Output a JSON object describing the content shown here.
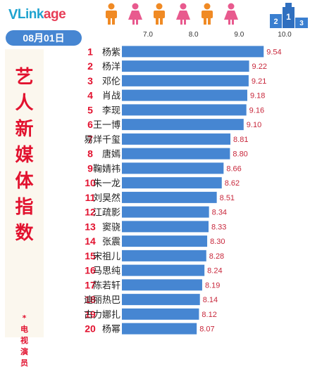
{
  "header": {
    "logo_v": "V",
    "logo_link": "Link",
    "logo_age": "age",
    "date": "08月01日",
    "podium_labels": [
      "2",
      "1",
      "3"
    ]
  },
  "side_title": {
    "chars": [
      "艺",
      "人",
      "新",
      "媒",
      "体",
      "指",
      "数"
    ],
    "sub_chars": [
      "*",
      "电",
      "视",
      "演",
      "员"
    ]
  },
  "colors": {
    "accent_red": "#e2122f",
    "bar_blue": "#4686d2",
    "person_orange": "#f08a24",
    "person_pink": "#e85a8e",
    "podium_blue": "#3a7fd0"
  },
  "chart_data": {
    "type": "bar",
    "orientation": "horizontal",
    "xlim": [
      7.0,
      10.0
    ],
    "xticks": [
      "7.0",
      "8.0",
      "9.0",
      "10.0"
    ],
    "categories": [
      "杨紫",
      "杨洋",
      "邓伦",
      "肖战",
      "李现",
      "王一博",
      "易烊千玺",
      "唐嫣",
      "鞠婧祎",
      "朱一龙",
      "刘昊然",
      "江疏影",
      "窦骁",
      "张震",
      "宋祖儿",
      "马思纯",
      "陈若轩",
      "迪丽热巴",
      "古力娜扎",
      "杨幂"
    ],
    "ranks": [
      "1",
      "2",
      "3",
      "4",
      "5",
      "6",
      "7",
      "8",
      "9",
      "10",
      "11",
      "12",
      "13",
      "14",
      "15",
      "16",
      "17",
      "18",
      "19",
      "20"
    ],
    "values": [
      9.54,
      9.22,
      9.21,
      9.18,
      9.16,
      9.1,
      8.81,
      8.8,
      8.66,
      8.62,
      8.51,
      8.34,
      8.33,
      8.3,
      8.28,
      8.24,
      8.19,
      8.14,
      8.12,
      8.07
    ],
    "value_labels": [
      "9.54",
      "9.22",
      "9.21",
      "9.18",
      "9.16",
      "9.10",
      "8.81",
      "8.80",
      "8.66",
      "8.62",
      "8.51",
      "8.34",
      "8.33",
      "8.30",
      "8.28",
      "8.24",
      "8.19",
      "8.14",
      "8.12",
      "8.07"
    ]
  }
}
